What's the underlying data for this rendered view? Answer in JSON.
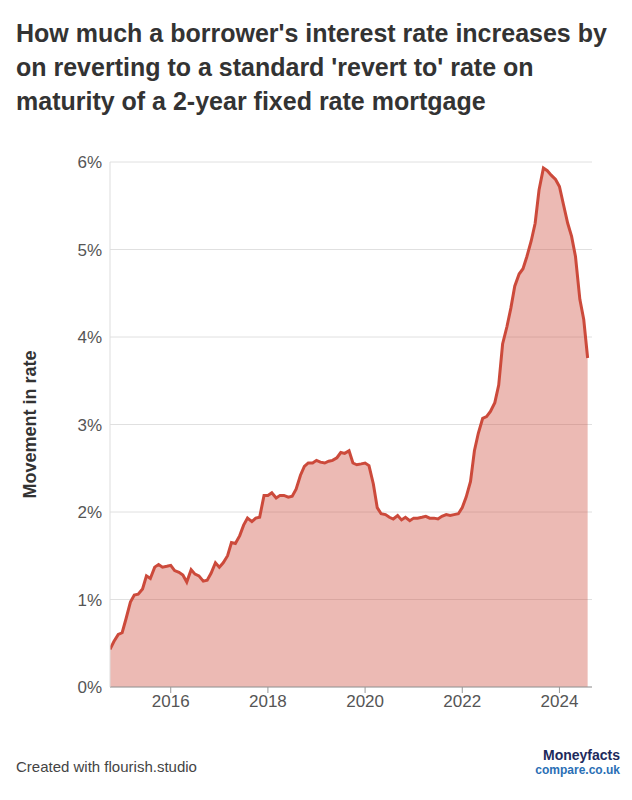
{
  "chart_data": {
    "type": "area",
    "title": "How much a borrower's interest rate increases by on reverting to a standard 'revert to' rate on maturity of a 2-year fixed rate mortgage",
    "y_label": "Movement in rate",
    "annotations": [
      "Created with flourish.studio",
      "Moneyfacts",
      "compare.co.uk"
    ],
    "color": "#cc4a3b",
    "grid": true,
    "xlim": [
      2014.75,
      2024.67
    ],
    "xticks": [
      2016,
      2018,
      2020,
      2022,
      2024
    ],
    "ylim": [
      0,
      6
    ],
    "yticks": [
      {
        "value": 0,
        "label": "0%"
      },
      {
        "value": 1,
        "label": "1%"
      },
      {
        "value": 2,
        "label": "2%"
      },
      {
        "value": 3,
        "label": "3%"
      },
      {
        "value": 4,
        "label": "4%"
      },
      {
        "value": 5,
        "label": "5%"
      },
      {
        "value": 6,
        "label": "6%"
      }
    ],
    "x": [
      2014.75,
      2014.83,
      2014.92,
      2015.0,
      2015.08,
      2015.17,
      2015.25,
      2015.33,
      2015.42,
      2015.5,
      2015.58,
      2015.67,
      2015.75,
      2015.83,
      2015.92,
      2016.0,
      2016.08,
      2016.17,
      2016.25,
      2016.33,
      2016.42,
      2016.5,
      2016.58,
      2016.67,
      2016.75,
      2016.83,
      2016.92,
      2017.0,
      2017.08,
      2017.17,
      2017.25,
      2017.33,
      2017.42,
      2017.5,
      2017.58,
      2017.67,
      2017.75,
      2017.83,
      2017.92,
      2018.0,
      2018.08,
      2018.17,
      2018.25,
      2018.33,
      2018.42,
      2018.5,
      2018.58,
      2018.67,
      2018.75,
      2018.83,
      2018.92,
      2019.0,
      2019.08,
      2019.17,
      2019.25,
      2019.33,
      2019.42,
      2019.5,
      2019.58,
      2019.67,
      2019.75,
      2019.83,
      2019.92,
      2020.0,
      2020.08,
      2020.17,
      2020.25,
      2020.33,
      2020.42,
      2020.5,
      2020.58,
      2020.67,
      2020.75,
      2020.83,
      2020.92,
      2021.0,
      2021.08,
      2021.17,
      2021.25,
      2021.33,
      2021.42,
      2021.5,
      2021.58,
      2021.67,
      2021.75,
      2021.83,
      2021.92,
      2022.0,
      2022.08,
      2022.17,
      2022.25,
      2022.33,
      2022.42,
      2022.5,
      2022.58,
      2022.67,
      2022.75,
      2022.83,
      2022.92,
      2023.0,
      2023.08,
      2023.17,
      2023.25,
      2023.33,
      2023.42,
      2023.5,
      2023.58,
      2023.67,
      2023.75,
      2023.83,
      2023.92,
      2024.0,
      2024.08,
      2024.17,
      2024.25,
      2024.33,
      2024.42,
      2024.5,
      2024.58
    ],
    "values": [
      0.43,
      0.52,
      0.6,
      0.62,
      0.78,
      0.97,
      1.05,
      1.06,
      1.12,
      1.27,
      1.24,
      1.37,
      1.4,
      1.37,
      1.38,
      1.39,
      1.33,
      1.31,
      1.28,
      1.2,
      1.34,
      1.29,
      1.27,
      1.21,
      1.22,
      1.3,
      1.42,
      1.37,
      1.42,
      1.5,
      1.65,
      1.64,
      1.73,
      1.85,
      1.93,
      1.89,
      1.93,
      1.94,
      2.19,
      2.19,
      2.22,
      2.16,
      2.19,
      2.19,
      2.17,
      2.18,
      2.26,
      2.42,
      2.52,
      2.56,
      2.56,
      2.59,
      2.57,
      2.56,
      2.58,
      2.59,
      2.62,
      2.68,
      2.67,
      2.7,
      2.56,
      2.54,
      2.55,
      2.56,
      2.53,
      2.32,
      2.05,
      1.98,
      1.97,
      1.94,
      1.92,
      1.96,
      1.91,
      1.94,
      1.9,
      1.93,
      1.93,
      1.94,
      1.95,
      1.93,
      1.93,
      1.92,
      1.95,
      1.97,
      1.96,
      1.97,
      1.98,
      2.05,
      2.17,
      2.35,
      2.7,
      2.9,
      3.07,
      3.09,
      3.15,
      3.25,
      3.45,
      3.92,
      4.12,
      4.33,
      4.58,
      4.72,
      4.78,
      4.92,
      5.1,
      5.3,
      5.68,
      5.93,
      5.9,
      5.85,
      5.8,
      5.72,
      5.52,
      5.3,
      5.15,
      4.92,
      4.43,
      4.2,
      3.76
    ]
  }
}
